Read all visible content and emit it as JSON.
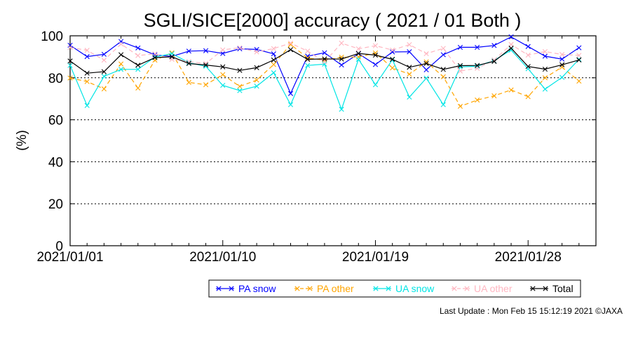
{
  "chart_data": {
    "type": "line",
    "title": "SGLI/SICE[2000] accuracy ( 2021 / 01 Both )",
    "xlabel": "",
    "ylabel": "(%)",
    "ylim": [
      0,
      100
    ],
    "yticks": [
      0,
      20,
      40,
      60,
      80,
      100
    ],
    "xlim": [
      "2021/01/01",
      "2021/01/31"
    ],
    "xticks": [
      "2021/01/01",
      "2021/01/10",
      "2021/01/19",
      "2021/01/28"
    ],
    "grid": "horizontal dotted at 20, 40, 60, 80",
    "legend_position": "bottom-right",
    "x": [
      "2021/01/01",
      "2021/01/02",
      "2021/01/03",
      "2021/01/04",
      "2021/01/05",
      "2021/01/06",
      "2021/01/07",
      "2021/01/08",
      "2021/01/09",
      "2021/01/10",
      "2021/01/11",
      "2021/01/12",
      "2021/01/13",
      "2021/01/14",
      "2021/01/15",
      "2021/01/16",
      "2021/01/17",
      "2021/01/18",
      "2021/01/19",
      "2021/01/20",
      "2021/01/21",
      "2021/01/22",
      "2021/01/23",
      "2021/01/24",
      "2021/01/25",
      "2021/01/26",
      "2021/01/27",
      "2021/01/28",
      "2021/01/29",
      "2021/01/30",
      "2021/01/31"
    ],
    "series": [
      {
        "name": "PA snow",
        "color": "#0000ff",
        "dash": "solid",
        "values": [
          95.5,
          90.1,
          91.2,
          97.3,
          94.2,
          90.9,
          90.2,
          92.7,
          92.9,
          91.6,
          93.8,
          93.5,
          91.4,
          72.5,
          90.3,
          91.9,
          86.1,
          91.5,
          86.3,
          92.3,
          92.4,
          83.8,
          91.0,
          94.5,
          94.5,
          95.4,
          99.5,
          94.9,
          90.3,
          88.9,
          94.3
        ]
      },
      {
        "name": "PA other",
        "color": "#ffa500",
        "dash": "dashed",
        "values": [
          79.9,
          78.2,
          74.7,
          86.6,
          75.1,
          88.4,
          91.9,
          77.8,
          76.7,
          81.5,
          75.9,
          78.9,
          86.3,
          95.9,
          89.4,
          88.4,
          89.8,
          89.9,
          91.8,
          84.7,
          81.7,
          87.6,
          80.5,
          66.4,
          69.4,
          71.4,
          74.2,
          71.0,
          80.0,
          85.1,
          78.4
        ]
      },
      {
        "name": "UA snow",
        "color": "#00e5e5",
        "dash": "solid",
        "values": [
          85.9,
          66.8,
          80.7,
          84.0,
          84.0,
          89.9,
          91.5,
          87.2,
          85.5,
          76.4,
          73.9,
          76.0,
          82.4,
          67.2,
          85.9,
          86.5,
          65.0,
          88.8,
          76.7,
          88.6,
          70.8,
          79.8,
          67.2,
          85.2,
          85.5,
          88.3,
          93.2,
          84.3,
          74.6,
          80.2,
          88.8
        ]
      },
      {
        "name": "UA other",
        "color": "#ffb6c1",
        "dash": "dashed",
        "values": [
          94.4,
          93.1,
          88.4,
          96.1,
          90.6,
          91.4,
          88.8,
          87.7,
          86.8,
          93.3,
          94.3,
          92.3,
          93.9,
          96.5,
          92.7,
          87.6,
          96.5,
          93.8,
          95.3,
          93.2,
          95.8,
          91.5,
          94.0,
          83.2,
          84.5,
          88.5,
          95.9,
          90.8,
          92.5,
          91.1,
          90.7
        ]
      },
      {
        "name": "Total",
        "color": "#000000",
        "dash": "solid",
        "values": [
          88.0,
          82.2,
          82.9,
          91.0,
          86.0,
          89.6,
          90.0,
          86.8,
          86.1,
          85.2,
          83.5,
          84.8,
          88.5,
          93.4,
          88.8,
          89.0,
          88.9,
          91.6,
          90.8,
          88.8,
          85.0,
          86.8,
          84.0,
          85.8,
          85.9,
          87.8,
          94.1,
          85.4,
          84.1,
          86.2,
          88.5
        ]
      }
    ]
  },
  "footer": {
    "last_update": "Last Update : Mon Feb 15 15:12:19 2021  ©JAXA"
  }
}
